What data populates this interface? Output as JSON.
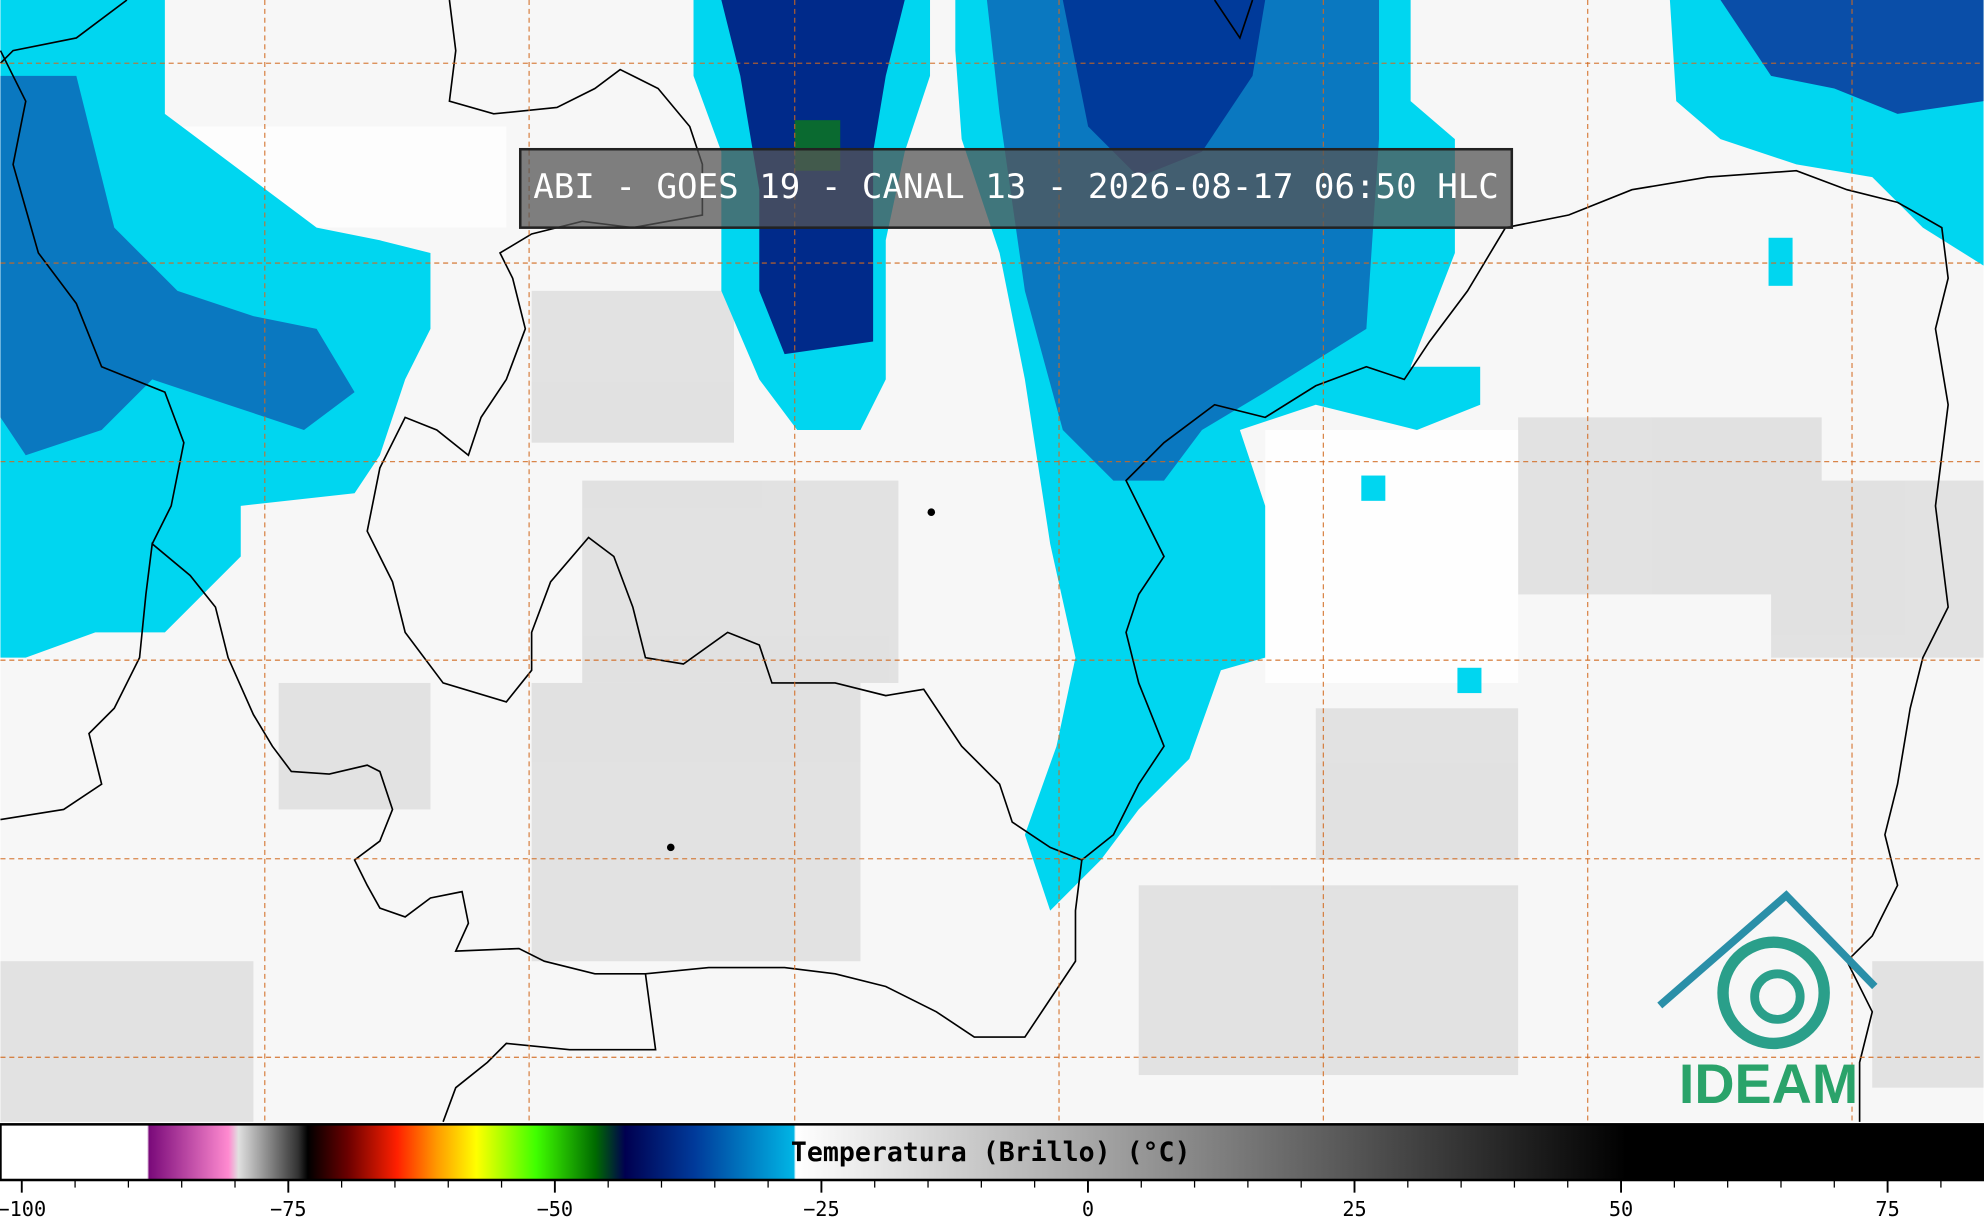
{
  "title": "ABI - GOES 19 - CANAL 13 - 2026-08-17 06:50 HLC",
  "colorbar": {
    "label": "Temperatura (Brillo) (°C)",
    "lim": [
      -102,
      84
    ],
    "ticks": [
      {
        "value": -100,
        "label": "−100"
      },
      {
        "value": -75,
        "label": "−75"
      },
      {
        "value": -50,
        "label": "−50"
      },
      {
        "value": -25,
        "label": "−25"
      },
      0,
      25,
      50,
      75
    ]
  },
  "logo": {
    "text": "IDEAM"
  }
}
